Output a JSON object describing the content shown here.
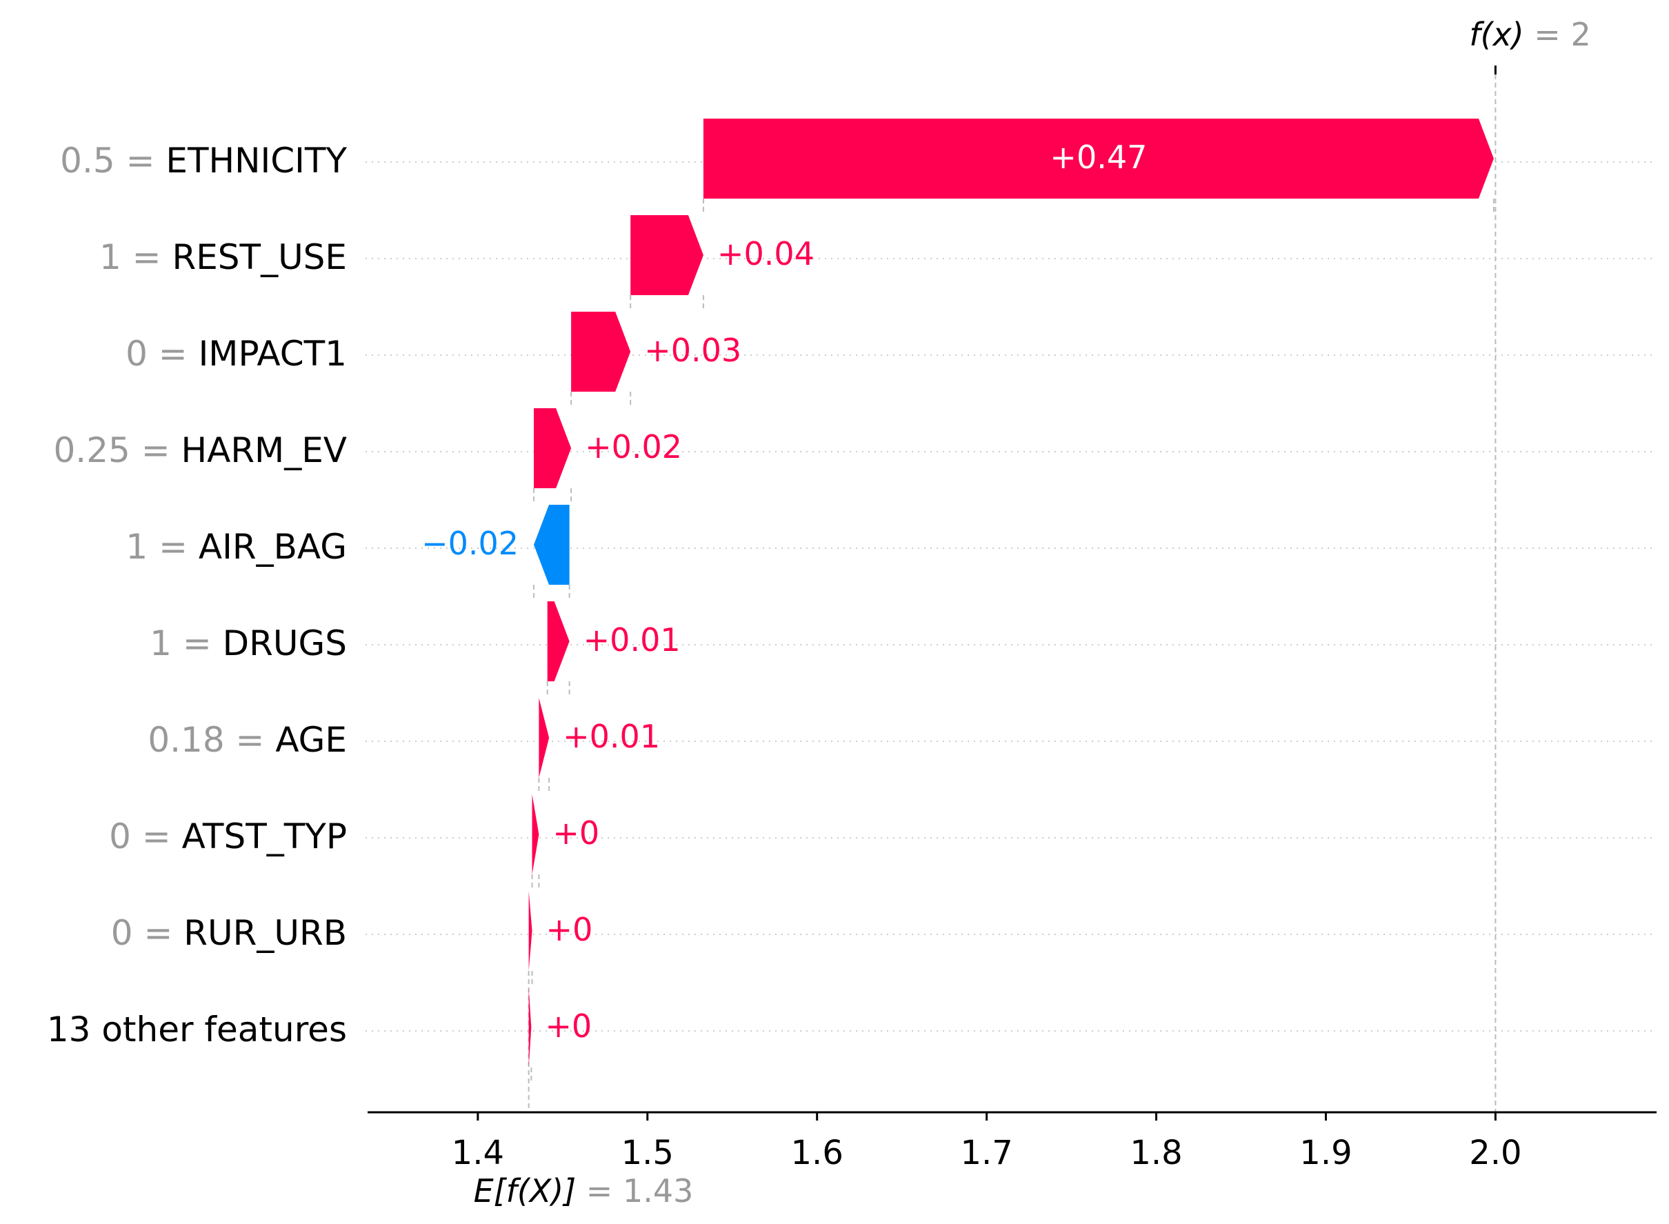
{
  "chart_data": {
    "type": "waterfall",
    "title": "",
    "xlabel": "",
    "ylabel": "",
    "xlim": [
      1.335,
      2.095
    ],
    "x_ticks": [
      {
        "value": 1.4,
        "label": "1.4"
      },
      {
        "value": 1.5,
        "label": "1.5"
      },
      {
        "value": 1.6,
        "label": "1.6"
      },
      {
        "value": 1.7,
        "label": "1.7"
      },
      {
        "value": 1.8,
        "label": "1.8"
      },
      {
        "value": 1.9,
        "label": "1.9"
      },
      {
        "value": 2.0,
        "label": "2.0"
      }
    ],
    "base_value": 1.43,
    "output_value": 2.0,
    "base_label": {
      "func": "E[f(X)]",
      "eq": " = ",
      "value": "1.43"
    },
    "output_label": {
      "func": "f(x)",
      "eq": " = ",
      "value": "2"
    },
    "colors": {
      "positive": "#ff0051",
      "negative": "#008bfb",
      "value_text": "#999999"
    },
    "grid": "horizontal dotted",
    "features": [
      {
        "value_text": "0.5",
        "name": "ETHNICITY",
        "start": 1.533,
        "shap": 0.466,
        "label": "+0.47"
      },
      {
        "value_text": "1",
        "name": "REST_USE",
        "start": 1.49,
        "shap": 0.043,
        "label": "+0.04"
      },
      {
        "value_text": "0",
        "name": "IMPACT1",
        "start": 1.455,
        "shap": 0.035,
        "label": "+0.03"
      },
      {
        "value_text": "0.25",
        "name": "HARM_EV",
        "start": 1.433,
        "shap": 0.022,
        "label": "+0.02"
      },
      {
        "value_text": "1",
        "name": "AIR_BAG",
        "start": 1.454,
        "shap": -0.021,
        "label": "−0.02"
      },
      {
        "value_text": "1",
        "name": "DRUGS",
        "start": 1.441,
        "shap": 0.013,
        "label": "+0.01"
      },
      {
        "value_text": "0.18",
        "name": "AGE",
        "start": 1.436,
        "shap": 0.006,
        "label": "+0.01"
      },
      {
        "value_text": "0",
        "name": "ATST_TYP",
        "start": 1.432,
        "shap": 0.004,
        "label": "+0"
      },
      {
        "value_text": "0",
        "name": "RUR_URB",
        "start": 1.43,
        "shap": 0.002,
        "label": "+0"
      },
      {
        "value_text": "",
        "name": "13 other features",
        "start": 1.43,
        "shap": 0.0015,
        "label": "+0"
      }
    ]
  }
}
